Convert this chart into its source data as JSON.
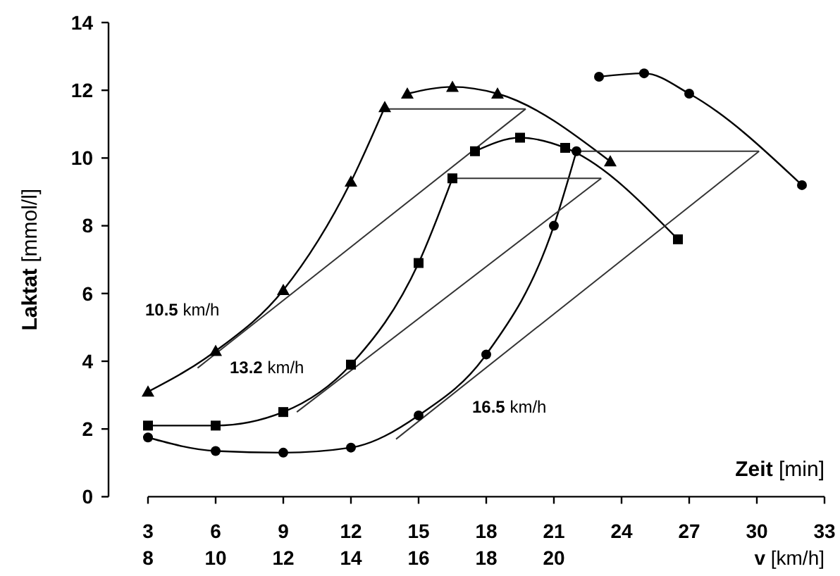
{
  "chart_data": {
    "type": "line",
    "xlabel": "Zeit [min]",
    "ylabel": "Laktat [mmol/l]",
    "x2label": "v [km/h]",
    "xlim": [
      3,
      33
    ],
    "xticks": [
      3,
      6,
      9,
      12,
      15,
      18,
      21,
      24,
      27,
      30,
      33
    ],
    "x2lim": [
      8,
      28
    ],
    "x2ticks": [
      8,
      10,
      12,
      14,
      16,
      18,
      20
    ],
    "ylim": [
      0,
      14
    ],
    "yticks": [
      0,
      2,
      4,
      6,
      8,
      10,
      12,
      14
    ],
    "grid": false,
    "series": [
      {
        "color": "#000000",
        "marker": "triangle",
        "x": [
          3,
          6,
          9,
          12,
          13.5,
          14,
          14.5,
          16.5,
          18.5,
          23.5
        ],
        "values": [
          3.1,
          4.3,
          6.1,
          9.3,
          11.5,
          null,
          11.9,
          12.1,
          11.9,
          9.9
        ]
      },
      {
        "color": "#000000",
        "marker": "square",
        "x": [
          3,
          6,
          9,
          12,
          15,
          16.5,
          17,
          17.5,
          19.5,
          21.5,
          26.5
        ],
        "values": [
          2.1,
          2.1,
          2.5,
          3.9,
          6.9,
          9.4,
          null,
          10.2,
          10.6,
          10.3,
          7.6
        ]
      },
      {
        "color": "#000000",
        "marker": "circle",
        "x": [
          3,
          6,
          9,
          12,
          15,
          18,
          21,
          22,
          22.5,
          23,
          25,
          27,
          32
        ],
        "values": [
          1.75,
          1.35,
          1.3,
          1.45,
          2.4,
          4.2,
          8.0,
          10.2,
          null,
          12.4,
          12.5,
          11.9,
          9.2
        ]
      },
      {
        "color": "#333333",
        "marker": "none",
        "x": [
          5.2,
          19.75
        ],
        "values": [
          3.8,
          11.45
        ]
      },
      {
        "color": "#333333",
        "marker": "none",
        "x": [
          13.5,
          19.75
        ],
        "values": [
          11.45,
          11.45
        ]
      },
      {
        "color": "#333333",
        "marker": "none",
        "x": [
          9.6,
          23.1
        ],
        "values": [
          2.5,
          9.4
        ]
      },
      {
        "color": "#333333",
        "marker": "none",
        "x": [
          16.5,
          23.1
        ],
        "values": [
          9.4,
          9.4
        ]
      },
      {
        "color": "#333333",
        "marker": "none",
        "x": [
          14.0,
          30.1
        ],
        "values": [
          1.7,
          10.2
        ]
      },
      {
        "color": "#333333",
        "marker": "none",
        "x": [
          22,
          30.1
        ],
        "values": [
          10.2,
          10.2
        ]
      }
    ],
    "annotations": [
      "10.5 km/h",
      "13.2 km/h",
      "16.5 km/h"
    ]
  }
}
